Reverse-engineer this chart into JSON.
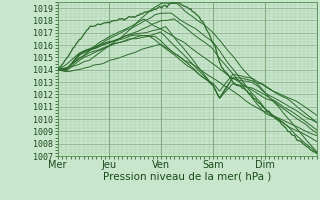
{
  "bg_color": "#c8e6cc",
  "grid_color_minor": "#a8cca8",
  "grid_color_major": "#88aa88",
  "line_color": "#2d6b2d",
  "xlabel": "Pression niveau de la mer( hPa )",
  "ylim": [
    1007,
    1019.5
  ],
  "yticks": [
    1007,
    1008,
    1009,
    1010,
    1011,
    1012,
    1013,
    1014,
    1015,
    1016,
    1017,
    1018,
    1019
  ],
  "xtick_labels": [
    "Mer",
    "Jeu",
    "Ven",
    "Sam",
    "Dim"
  ],
  "xtick_positions": [
    0,
    48,
    96,
    144,
    192
  ],
  "xlim": [
    0,
    240
  ],
  "xlabel_fontsize": 7.5,
  "ytick_fontsize": 6,
  "xtick_fontsize": 7
}
